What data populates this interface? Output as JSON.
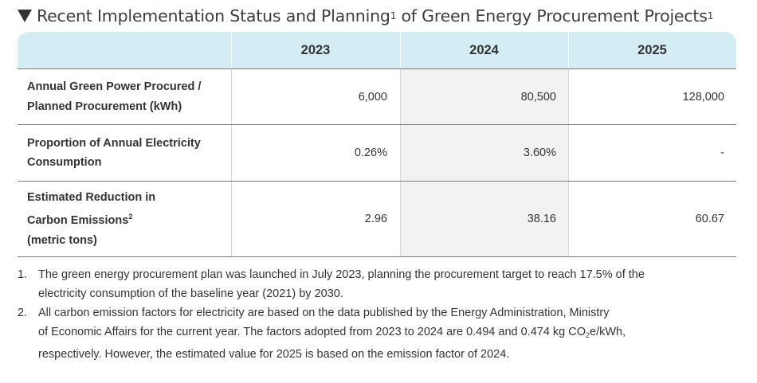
{
  "title": {
    "text": "Recent Implementation Status and Planning",
    "mark": "1",
    "text2": " of Green Energy Procurement Projects",
    "mark2": "1"
  },
  "table": {
    "columns": [
      "",
      "2023",
      "2024",
      "2025"
    ],
    "rows": [
      {
        "label_line1": "Annual Green Power Procured /",
        "label_line2": "Planned Procurement (kWh)",
        "values": [
          "6,000",
          "80,500",
          "128,000"
        ]
      },
      {
        "label_line1": "Proportion of Annual Electricity",
        "label_line2": "Consumption",
        "values": [
          "0.26%",
          "3.60%",
          "-"
        ]
      },
      {
        "label_line1": "Estimated Reduction in",
        "label_line2": "Carbon Emissions",
        "label_line2_sup": "2",
        "label_line3": "(metric tons)",
        "values": [
          "2.96",
          "38.16",
          "60.67"
        ]
      }
    ]
  },
  "footnotes": [
    {
      "number": "1.",
      "line1": "The green energy procurement plan was launched in July 2023, planning the procurement target to reach 17.5% of the",
      "line2": "electricity consumption of the baseline year (2021) by 2030."
    },
    {
      "number": "2.",
      "line1": "All carbon emission factors for electricity are based on the data published by the Energy Administration, Ministry",
      "line2a": "of Economic Affairs for the current year. The factors adopted from 2023 to 2024 are 0.494 and 0.474 kg CO",
      "line2_sub": "2",
      "line2b": "e/kWh,",
      "line3": "respectively. However, the estimated value for 2025 is based on the emission factor of 2024."
    }
  ]
}
